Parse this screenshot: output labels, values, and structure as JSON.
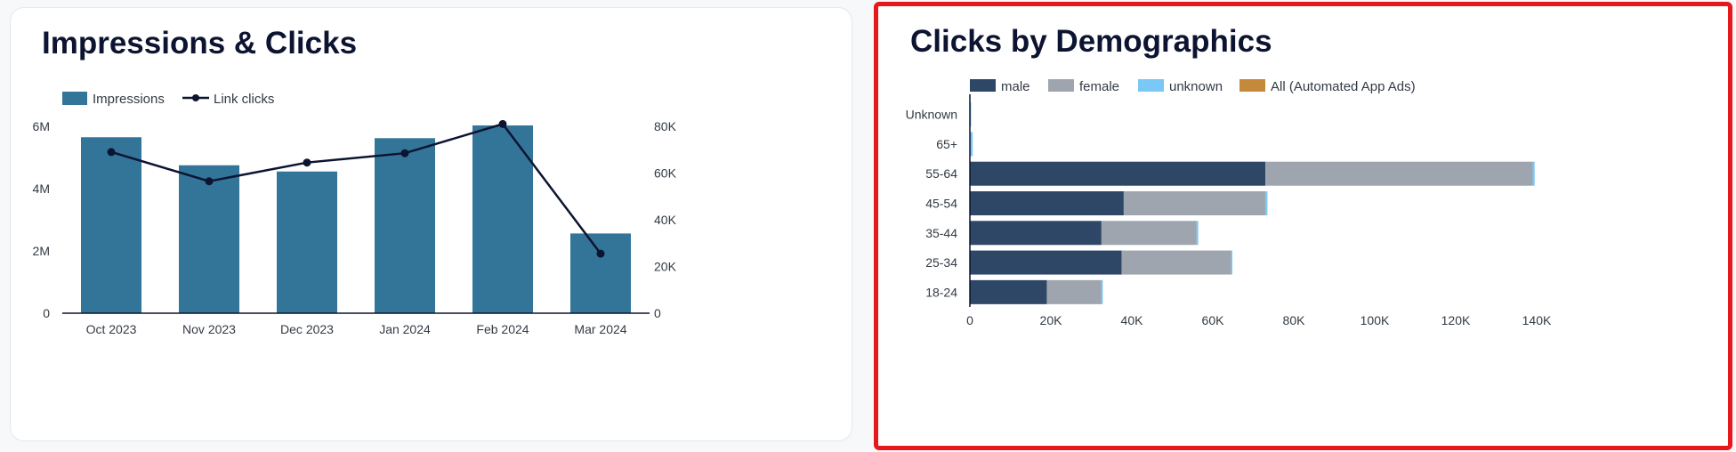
{
  "left_card": {
    "title": "Impressions & Clicks"
  },
  "right_card": {
    "title": "Clicks by Demographics"
  },
  "colors": {
    "impressions": "#337599",
    "link_clicks": "#0d1431",
    "male": "#2e4766",
    "female": "#9ea5ae",
    "unknown": "#79c8f5",
    "all_automated": "#c4893b",
    "highlight_border": "#e8171c"
  },
  "chart_data": [
    {
      "type": "bar",
      "title": "Impressions & Clicks",
      "categories": [
        "Oct 2023",
        "Nov 2023",
        "Dec 2023",
        "Jan 2024",
        "Feb 2024",
        "Mar 2024"
      ],
      "series": [
        {
          "name": "Impressions",
          "type": "bar",
          "axis": "left",
          "values": [
            5650000,
            4750000,
            4550000,
            5620000,
            6030000,
            2560000
          ]
        },
        {
          "name": "Link clicks",
          "type": "line",
          "axis": "right",
          "values": [
            69000,
            56500,
            64500,
            68500,
            81000,
            25500
          ]
        }
      ],
      "y_left": {
        "ylim": [
          0,
          6000000
        ],
        "ticks": [
          0,
          2000000,
          4000000,
          6000000
        ],
        "tick_labels": [
          "0",
          "2M",
          "4M",
          "6M"
        ]
      },
      "y_right": {
        "ylim": [
          0,
          80000
        ],
        "ticks": [
          0,
          20000,
          40000,
          60000,
          80000
        ],
        "tick_labels": [
          "0",
          "20K",
          "40K",
          "60K",
          "80K"
        ]
      },
      "legend": "top-left",
      "grid": false
    },
    {
      "type": "bar",
      "orientation": "horizontal",
      "stacked": true,
      "title": "Clicks by Demographics",
      "categories": [
        "Unknown",
        "65+",
        "55-64",
        "45-54",
        "35-44",
        "25-34",
        "18-24"
      ],
      "series": [
        {
          "name": "male",
          "values": [
            0,
            0,
            73000,
            38000,
            32500,
            37500,
            19000
          ]
        },
        {
          "name": "female",
          "values": [
            0,
            0,
            66000,
            35000,
            23500,
            27000,
            13500
          ]
        },
        {
          "name": "unknown",
          "values": [
            150,
            700,
            500,
            500,
            400,
            300,
            300
          ]
        },
        {
          "name": "All (Automated App Ads)",
          "values": [
            0,
            0,
            0,
            0,
            0,
            0,
            0
          ]
        }
      ],
      "x_axis": {
        "xlim": [
          0,
          140000
        ],
        "ticks": [
          0,
          20000,
          40000,
          60000,
          80000,
          100000,
          120000,
          140000
        ],
        "tick_labels": [
          "0",
          "20K",
          "40K",
          "60K",
          "80K",
          "100K",
          "120K",
          "140K"
        ]
      },
      "legend": "top",
      "grid": false
    }
  ]
}
